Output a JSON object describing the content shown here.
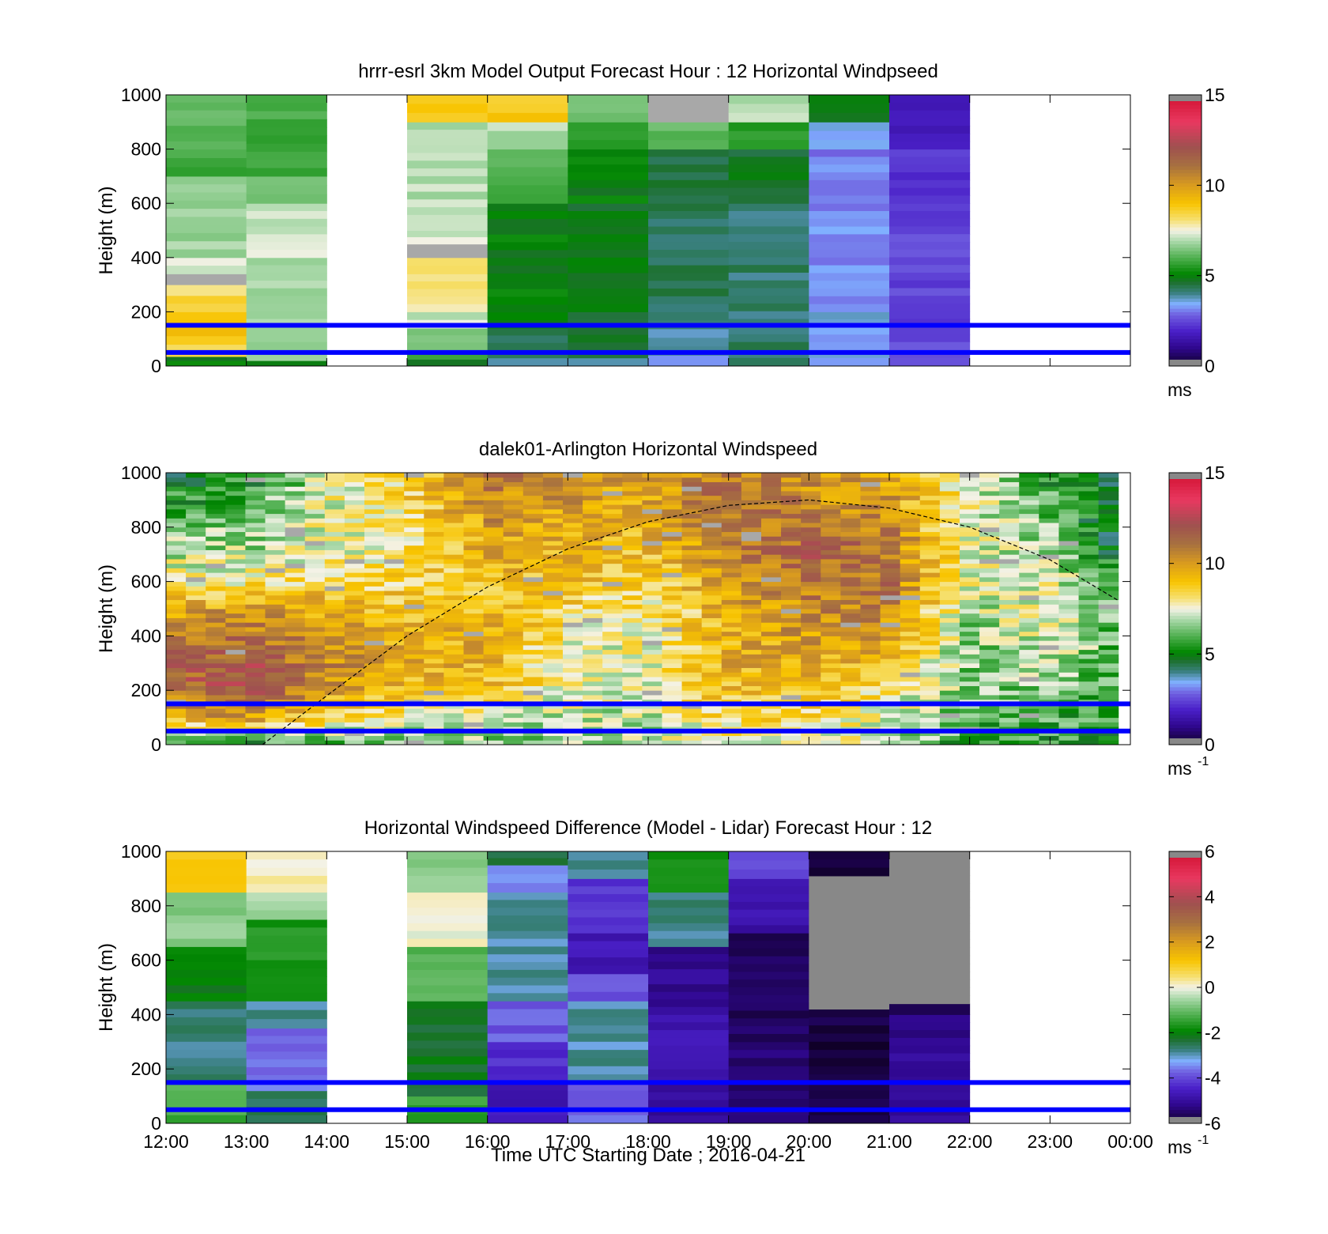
{
  "figure": {
    "xlabel": "Time UTC  Starting Date ; 2016-04-21",
    "x_ticks": [
      "12:00",
      "13:00",
      "14:00",
      "15:00",
      "16:00",
      "17:00",
      "18:00",
      "19:00",
      "20:00",
      "21:00",
      "22:00",
      "23:00",
      "00:00"
    ],
    "y_ticks": [
      "0",
      "200",
      "400",
      "600",
      "800",
      "1000"
    ],
    "line_color": "#0000ff",
    "dashed_curve_color": "#000000"
  },
  "chart_data": [
    {
      "type": "heatmap",
      "title": "hrrr-esrl 3km Model Output   Forecast Hour : 12 Horizontal Windpseed",
      "ylabel": "Height (m)",
      "x_range_hours": [
        12,
        24
      ],
      "ylim": [
        0,
        1000
      ],
      "horizontal_lines_m": [
        150,
        50
      ],
      "colorbar": {
        "ticks": [
          "0",
          "5",
          "10",
          "15"
        ],
        "range": [
          0,
          15
        ],
        "unit": "ms",
        "unit_sup": ""
      },
      "columns": [
        {
          "start": 12,
          "end": 13,
          "cells": [
            {
              "z0": 0,
              "z1": 20,
              "v": 5
            },
            {
              "z0": 20,
              "z1": 35,
              "v": 4.5
            },
            {
              "z0": 35,
              "z1": 80,
              "v": 8.5
            },
            {
              "z0": 80,
              "z1": 140,
              "v": 9
            },
            {
              "z0": 140,
              "z1": 200,
              "v": 9
            },
            {
              "z0": 200,
              "z1": 260,
              "v": 8.6
            },
            {
              "z0": 260,
              "z1": 300,
              "v": 8.2
            },
            {
              "z0": 300,
              "z1": 340,
              "v": null
            },
            {
              "z0": 340,
              "z1": 400,
              "v": 7.2
            },
            {
              "z0": 400,
              "z1": 700,
              "v": 6.8
            },
            {
              "z0": 700,
              "z1": 800,
              "v": 5.8
            },
            {
              "z0": 800,
              "z1": 1000,
              "v": 6.2
            }
          ]
        },
        {
          "start": 13,
          "end": 14,
          "cells": [
            {
              "z0": 0,
              "z1": 20,
              "v": 5.2
            },
            {
              "z0": 20,
              "z1": 60,
              "v": 6.5
            },
            {
              "z0": 60,
              "z1": 400,
              "v": 6.8
            },
            {
              "z0": 400,
              "z1": 600,
              "v": 7.2
            },
            {
              "z0": 600,
              "z1": 700,
              "v": 6.2
            },
            {
              "z0": 700,
              "z1": 1000,
              "v": 5.8
            }
          ]
        },
        {
          "start": 14,
          "end": 15,
          "cells": []
        },
        {
          "start": 15,
          "end": 16,
          "cells": [
            {
              "z0": 0,
              "z1": 25,
              "v": 4.5
            },
            {
              "z0": 25,
              "z1": 60,
              "v": 5.5
            },
            {
              "z0": 60,
              "z1": 140,
              "v": 6.5
            },
            {
              "z0": 140,
              "z1": 200,
              "v": 7.2
            },
            {
              "z0": 200,
              "z1": 340,
              "v": 8
            },
            {
              "z0": 340,
              "z1": 400,
              "v": 8
            },
            {
              "z0": 400,
              "z1": 450,
              "v": null
            },
            {
              "z0": 450,
              "z1": 500,
              "v": 7.2
            },
            {
              "z0": 500,
              "z1": 900,
              "v": 7
            },
            {
              "z0": 900,
              "z1": 1000,
              "v": 9
            }
          ]
        },
        {
          "start": 16,
          "end": 17,
          "cells": [
            {
              "z0": 0,
              "z1": 30,
              "v": 4
            },
            {
              "z0": 30,
              "z1": 140,
              "v": 4.5
            },
            {
              "z0": 140,
              "z1": 600,
              "v": 5
            },
            {
              "z0": 600,
              "z1": 700,
              "v": 5.7
            },
            {
              "z0": 700,
              "z1": 800,
              "v": 6.3
            },
            {
              "z0": 800,
              "z1": 900,
              "v": 7
            },
            {
              "z0": 900,
              "z1": 1000,
              "v": 8.8
            }
          ]
        },
        {
          "start": 17,
          "end": 18,
          "cells": [
            {
              "z0": 0,
              "z1": 30,
              "v": 3.8
            },
            {
              "z0": 30,
              "z1": 200,
              "v": 4.6
            },
            {
              "z0": 200,
              "z1": 600,
              "v": 4.8
            },
            {
              "z0": 600,
              "z1": 800,
              "v": 5
            },
            {
              "z0": 800,
              "z1": 900,
              "v": 5.6
            },
            {
              "z0": 900,
              "z1": 1000,
              "v": 6.3
            }
          ]
        },
        {
          "start": 18,
          "end": 19,
          "cells": [
            {
              "z0": 0,
              "z1": 40,
              "v": 3.3
            },
            {
              "z0": 40,
              "z1": 200,
              "v": 4
            },
            {
              "z0": 200,
              "z1": 600,
              "v": 4.3
            },
            {
              "z0": 600,
              "z1": 800,
              "v": 4.5
            },
            {
              "z0": 800,
              "z1": 900,
              "v": 6.2
            },
            {
              "z0": 900,
              "z1": 1000,
              "v": null
            }
          ]
        },
        {
          "start": 19,
          "end": 20,
          "cells": [
            {
              "z0": 0,
              "z1": 60,
              "v": 4.1
            },
            {
              "z0": 60,
              "z1": 600,
              "v": 4.2
            },
            {
              "z0": 600,
              "z1": 800,
              "v": 4.7
            },
            {
              "z0": 800,
              "z1": 900,
              "v": 5.6
            },
            {
              "z0": 900,
              "z1": 1000,
              "v": 7
            }
          ]
        },
        {
          "start": 20,
          "end": 21,
          "cells": [
            {
              "z0": 0,
              "z1": 60,
              "v": 3.4
            },
            {
              "z0": 60,
              "z1": 200,
              "v": 3.5
            },
            {
              "z0": 200,
              "z1": 600,
              "v": 3.2
            },
            {
              "z0": 600,
              "z1": 800,
              "v": 3.1
            },
            {
              "z0": 800,
              "z1": 900,
              "v": 3.6
            },
            {
              "z0": 900,
              "z1": 1000,
              "v": 4.8
            }
          ]
        },
        {
          "start": 21,
          "end": 22,
          "cells": [
            {
              "z0": 0,
              "z1": 60,
              "v": 2.6
            },
            {
              "z0": 60,
              "z1": 600,
              "v": 2.5
            },
            {
              "z0": 600,
              "z1": 800,
              "v": 2.3
            },
            {
              "z0": 800,
              "z1": 1000,
              "v": 1.8
            }
          ]
        },
        {
          "start": 22,
          "end": 24,
          "cells": []
        }
      ]
    },
    {
      "type": "heatmap",
      "title": "dalek01-Arlington  Horizontal Windspeed",
      "ylabel": "Height (m)",
      "x_range_hours": [
        12,
        24
      ],
      "ylim": [
        0,
        1000
      ],
      "horizontal_lines_m": [
        150,
        50
      ],
      "colorbar": {
        "ticks": [
          "0",
          "5",
          "10",
          "15"
        ],
        "range": [
          0,
          15
        ],
        "unit": "ms",
        "unit_sup": "-1"
      },
      "data_x_range_hours": [
        12,
        23.85
      ],
      "dashed_curve": {
        "x_hours": [
          13.2,
          14,
          15,
          16,
          17,
          18,
          19,
          20,
          21,
          22,
          23,
          23.85
        ],
        "y_m": [
          0,
          180,
          400,
          580,
          720,
          820,
          880,
          900,
          870,
          800,
          680,
          530
        ]
      },
      "approx_profiles": {
        "hours": [
          12,
          13,
          14,
          15,
          16,
          17,
          18,
          19,
          20,
          21,
          22,
          23,
          23.85
        ],
        "note_heights_m": [
          0,
          100,
          200,
          300,
          400,
          500,
          600,
          700,
          800,
          900,
          1000
        ],
        "values": [
          [
            5,
            9.5,
            11,
            11.5,
            11,
            9.5,
            8,
            7,
            6.5,
            5.5,
            5
          ],
          [
            5,
            10,
            12,
            12,
            11,
            10,
            8,
            7,
            6.5,
            6,
            5
          ],
          [
            6,
            8.5,
            10,
            10.5,
            10.5,
            9.5,
            8.5,
            7.5,
            7.5,
            7.5,
            7
          ],
          [
            6.5,
            7.5,
            9,
            9.5,
            9.5,
            9,
            8.5,
            8,
            8,
            8.5,
            8.5
          ],
          [
            6.5,
            7.5,
            9,
            9.5,
            9.5,
            9,
            9,
            9.5,
            10,
            10.5,
            11
          ],
          [
            6.5,
            7,
            7.5,
            7.5,
            8,
            8.5,
            9,
            9.5,
            9.5,
            10,
            10.5
          ],
          [
            7,
            7,
            7.5,
            7.5,
            7.5,
            8,
            8.5,
            9,
            9.5,
            9.5,
            10
          ],
          [
            7.5,
            8.5,
            9,
            9.5,
            9.5,
            9.5,
            10,
            10.5,
            11,
            11.5,
            11
          ],
          [
            7.5,
            8.5,
            9,
            9.5,
            10,
            10.5,
            11,
            11.5,
            11,
            10.5,
            10
          ],
          [
            7,
            7.5,
            8,
            9,
            10,
            10.5,
            11,
            11,
            10.5,
            10,
            10
          ],
          [
            5.5,
            6,
            6.5,
            6.5,
            6.5,
            7,
            7.5,
            7.5,
            7.5,
            7.5,
            7.5
          ],
          [
            5.5,
            6,
            6.5,
            7,
            7.5,
            7.5,
            7.5,
            7,
            6.5,
            6,
            5.5
          ],
          [
            5,
            5.5,
            6,
            6,
            6,
            6,
            5.5,
            5,
            4.5,
            4.5,
            4.5
          ]
        ]
      }
    },
    {
      "type": "heatmap",
      "title": "Horizontal Windspeed Difference (Model - Lidar) Forecast Hour : 12",
      "ylabel": "Height (m)",
      "x_range_hours": [
        12,
        24
      ],
      "ylim": [
        0,
        1000
      ],
      "horizontal_lines_m": [
        150,
        50
      ],
      "colorbar": {
        "ticks": [
          "-6",
          "-4",
          "-2",
          "0",
          "2",
          "4",
          "6"
        ],
        "range": [
          -6,
          6
        ],
        "unit": "ms",
        "unit_sup": "-1"
      },
      "columns": [
        {
          "start": 12,
          "end": 13,
          "cells": [
            {
              "z0": 0,
              "z1": 150,
              "v": -1.3
            },
            {
              "z0": 150,
              "z1": 450,
              "v": -2.7
            },
            {
              "z0": 450,
              "z1": 650,
              "v": -2
            },
            {
              "z0": 650,
              "z1": 850,
              "v": -0.7
            },
            {
              "z0": 850,
              "z1": 1000,
              "v": 1.2
            }
          ]
        },
        {
          "start": 13,
          "end": 14,
          "cells": [
            {
              "z0": 0,
              "z1": 120,
              "v": -2.6
            },
            {
              "z0": 120,
              "z1": 350,
              "v": -3.7
            },
            {
              "z0": 350,
              "z1": 450,
              "v": -2.9
            },
            {
              "z0": 450,
              "z1": 750,
              "v": -1.7
            },
            {
              "z0": 750,
              "z1": 850,
              "v": -0.5
            },
            {
              "z0": 850,
              "z1": 1000,
              "v": 0.2
            }
          ]
        },
        {
          "start": 14,
          "end": 15,
          "cells": []
        },
        {
          "start": 15,
          "end": 16,
          "cells": [
            {
              "z0": 0,
              "z1": 100,
              "v": -1.5
            },
            {
              "z0": 100,
              "z1": 450,
              "v": -2.2
            },
            {
              "z0": 450,
              "z1": 650,
              "v": -1.1
            },
            {
              "z0": 650,
              "z1": 850,
              "v": 0
            },
            {
              "z0": 850,
              "z1": 1000,
              "v": -0.8
            }
          ]
        },
        {
          "start": 16,
          "end": 17,
          "cells": [
            {
              "z0": 0,
              "z1": 150,
              "v": -4.7
            },
            {
              "z0": 150,
              "z1": 300,
              "v": -4.3
            },
            {
              "z0": 300,
              "z1": 450,
              "v": -3.8
            },
            {
              "z0": 450,
              "z1": 850,
              "v": -2.9
            },
            {
              "z0": 850,
              "z1": 950,
              "v": -3.5
            },
            {
              "z0": 950,
              "z1": 1000,
              "v": -2.4
            }
          ]
        },
        {
          "start": 17,
          "end": 18,
          "cells": [
            {
              "z0": 0,
              "z1": 150,
              "v": -3.8
            },
            {
              "z0": 150,
              "z1": 450,
              "v": -2.9
            },
            {
              "z0": 450,
              "z1": 550,
              "v": -3.8
            },
            {
              "z0": 550,
              "z1": 700,
              "v": -4.7
            },
            {
              "z0": 700,
              "z1": 900,
              "v": -4.2
            },
            {
              "z0": 900,
              "z1": 1000,
              "v": -2.8
            }
          ]
        },
        {
          "start": 18,
          "end": 19,
          "cells": [
            {
              "z0": 0,
              "z1": 200,
              "v": -5
            },
            {
              "z0": 200,
              "z1": 400,
              "v": -4.7
            },
            {
              "z0": 400,
              "z1": 650,
              "v": -5.1
            },
            {
              "z0": 650,
              "z1": 850,
              "v": -2.8
            },
            {
              "z0": 850,
              "z1": 1000,
              "v": -1.7
            }
          ]
        },
        {
          "start": 19,
          "end": 20,
          "cells": [
            {
              "z0": 0,
              "z1": 300,
              "v": -5.4
            },
            {
              "z0": 300,
              "z1": 700,
              "v": -5.6
            },
            {
              "z0": 700,
              "z1": 900,
              "v": -4.8
            },
            {
              "z0": 900,
              "z1": 1000,
              "v": -3.9
            }
          ]
        },
        {
          "start": 20,
          "end": 21,
          "cells": [
            {
              "z0": 0,
              "z1": 420,
              "v": -5.8
            },
            {
              "z0": 420,
              "z1": 910,
              "v": null
            },
            {
              "z0": 910,
              "z1": 1000,
              "v": -5.9
            }
          ]
        },
        {
          "start": 21,
          "end": 22,
          "cells": [
            {
              "z0": 0,
              "z1": 400,
              "v": -5.1
            },
            {
              "z0": 400,
              "z1": 440,
              "v": -5.8
            },
            {
              "z0": 440,
              "z1": 1000,
              "v": null
            }
          ]
        },
        {
          "start": 22,
          "end": 24,
          "cells": []
        }
      ]
    }
  ]
}
